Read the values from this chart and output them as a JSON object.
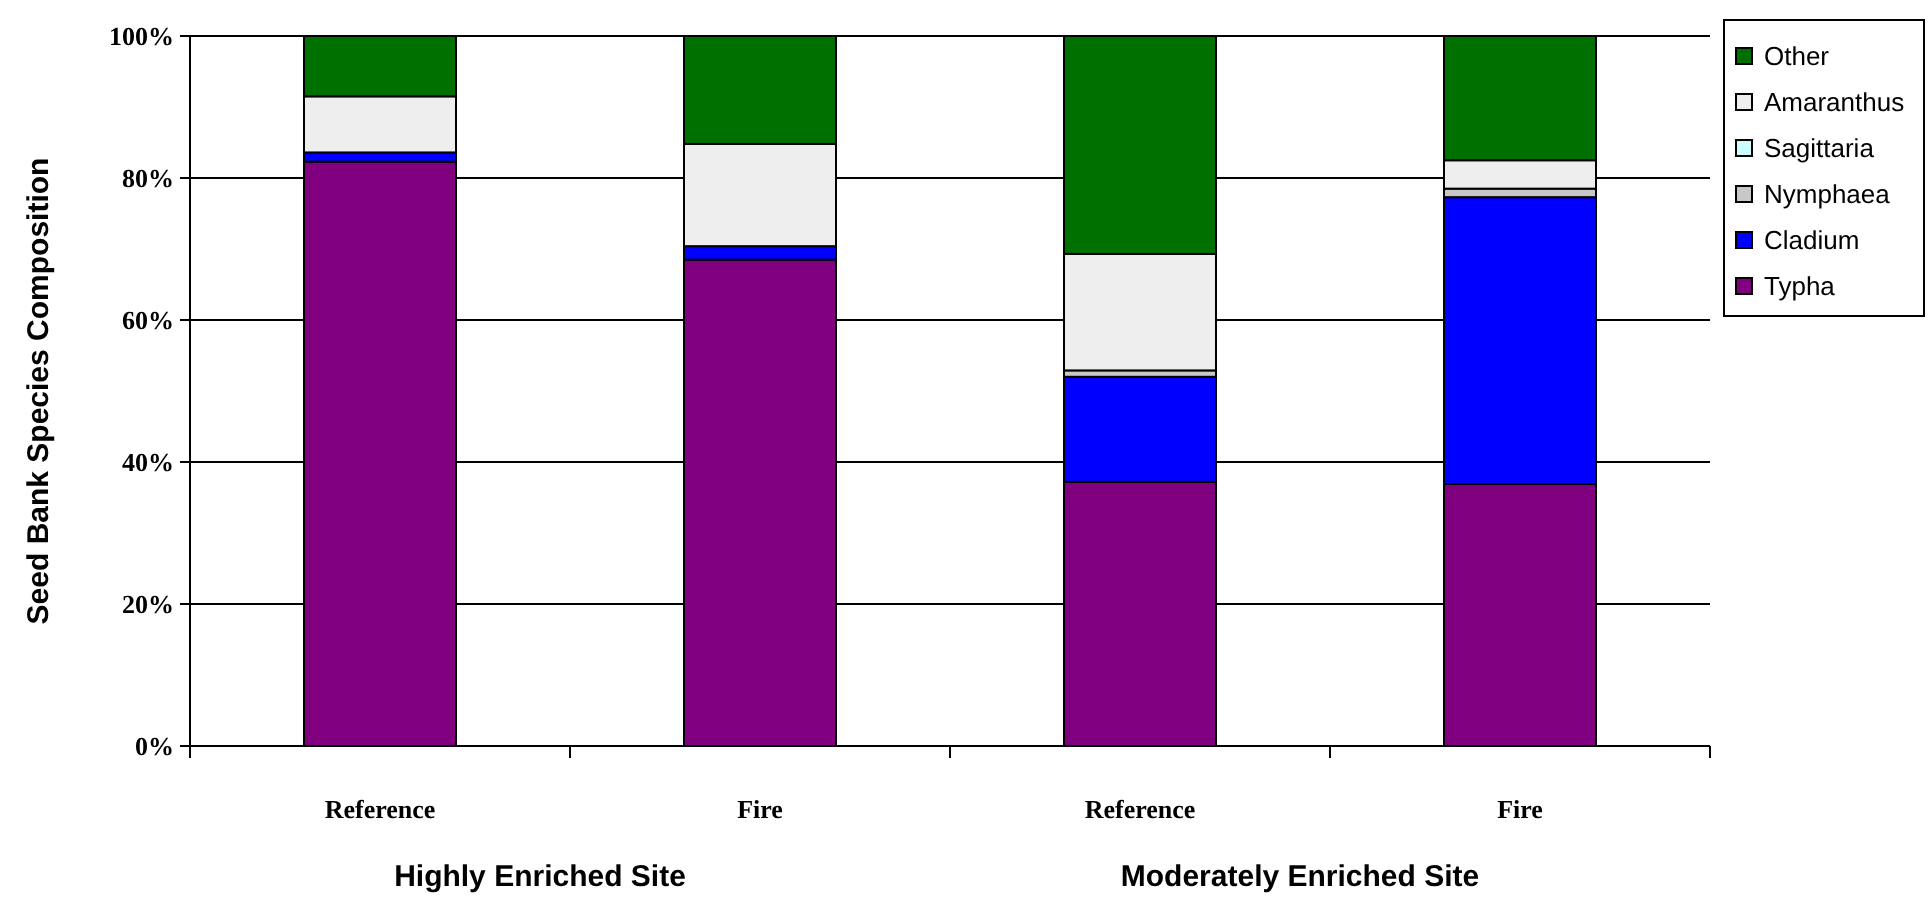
{
  "chart_data": {
    "type": "bar",
    "stacked": true,
    "ylabel": "Seed Bank Species Composition",
    "categories": [
      "Reference",
      "Fire",
      "Reference",
      "Fire"
    ],
    "series": [
      {
        "name": "Typha",
        "color": "#800080",
        "values": [
          82.3,
          68.5,
          37.2,
          36.9
        ]
      },
      {
        "name": "Cladium",
        "color": "#0000ff",
        "values": [
          1.3,
          1.9,
          14.8,
          40.4
        ]
      },
      {
        "name": "Nymphaea",
        "color": "#c8c8c8",
        "values": [
          0,
          0,
          0.9,
          1.2
        ]
      },
      {
        "name": "Sagittaria",
        "color": "#ccffff",
        "values": [
          0,
          0,
          0,
          0
        ]
      },
      {
        "name": "Amaranthus",
        "color": "#eeeeee",
        "values": [
          7.9,
          14.4,
          16.4,
          4.0
        ]
      },
      {
        "name": "Other",
        "color": "#007000",
        "values": [
          8.5,
          15.2,
          30.7,
          17.5
        ]
      }
    ],
    "ylim": [
      0,
      100
    ],
    "yticks": [
      {
        "value": 0,
        "label": "0%"
      },
      {
        "value": 20,
        "label": "20%"
      },
      {
        "value": 40,
        "label": "40%"
      },
      {
        "value": 60,
        "label": "60%"
      },
      {
        "value": 80,
        "label": "80%"
      },
      {
        "value": 100,
        "label": "100%"
      }
    ],
    "grid": "y",
    "legend": "top right",
    "annotations": [
      "Highly Enriched Site",
      "Moderately Enriched Site"
    ]
  }
}
